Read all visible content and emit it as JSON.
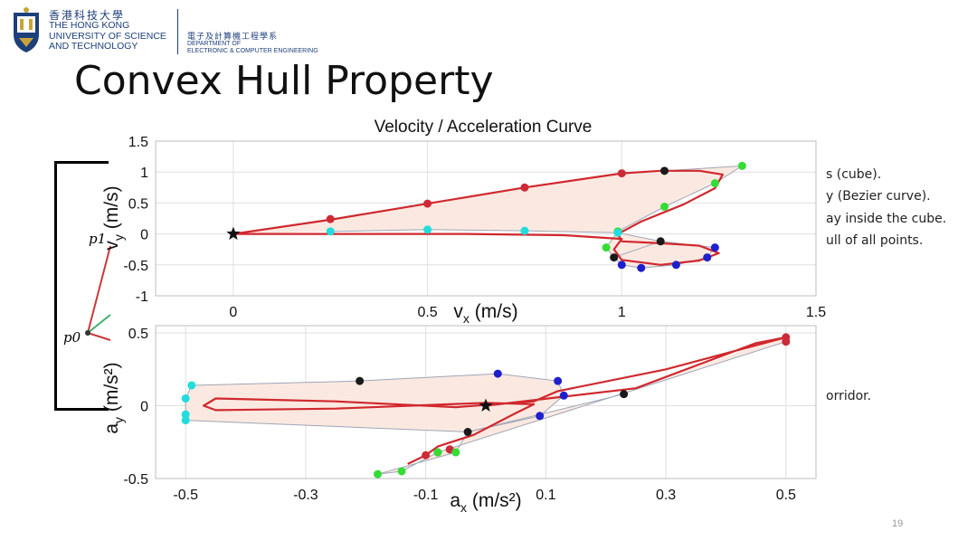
{
  "header": {
    "uni_name_cn": "香港科技大學",
    "uni_name_en": [
      "THE HONG KONG",
      "UNIVERSITY OF SCIENCE",
      "AND TECHNOLOGY"
    ],
    "dept_name_cn": "電子及計算機工程學系",
    "dept_name_en": [
      "DEPARTMENT OF",
      "ELECTRONIC & COMPUTER ENGINEERING"
    ]
  },
  "slide": {
    "title": "Convex Hull Property",
    "bullets": [
      "s (cube).",
      "y (Bezier curve).",
      "ay inside the cube.",
      "ull of all points.",
      "orridor."
    ],
    "page_number": "19",
    "control_point_labels": [
      "p1",
      "p0"
    ]
  },
  "colors": {
    "curve": "#d0282e",
    "hull_fill": "#fbe9e1",
    "hull_edge": "#9ea6b5",
    "pt_red": "#cc2a36",
    "pt_black": "#1a1a1a",
    "pt_green": "#33dd33",
    "pt_cyan": "#22dddd",
    "pt_blue": "#1f1fcc",
    "brand": "#1d3f7a"
  },
  "chart_data": [
    {
      "type": "line",
      "title": "Velocity / Acceleration Curve",
      "xlabel": "v_x (m/s)",
      "ylabel": "v_y (m/s)",
      "xlim": [
        -0.2,
        1.5
      ],
      "ylim": [
        -1,
        1.5
      ],
      "xticks": [
        "0",
        "0.5",
        "1",
        "1.5"
      ],
      "xtick_values": [
        0,
        0.5,
        1,
        1.5
      ],
      "yticks": [
        "1.5",
        "1",
        "0.5",
        "0",
        "-0.5",
        "-1"
      ],
      "ytick_values": [
        1.5,
        1,
        0.5,
        0,
        -0.5,
        -1
      ],
      "grid": true,
      "start_marker": [
        0,
        0
      ],
      "curve": [
        [
          0,
          0
        ],
        [
          0.25,
          0.23
        ],
        [
          0.5,
          0.49
        ],
        [
          0.75,
          0.75
        ],
        [
          1,
          0.98
        ],
        [
          1.1,
          1.02
        ],
        [
          1.2,
          1.02
        ],
        [
          1.26,
          0.96
        ],
        [
          1.24,
          0.74
        ],
        [
          1.16,
          0.48
        ],
        [
          1.05,
          0.2
        ],
        [
          0.99,
          0
        ],
        [
          1.0,
          -0.12
        ],
        [
          1.1,
          -0.15
        ],
        [
          1.2,
          -0.19
        ],
        [
          1.25,
          -0.31
        ],
        [
          1.2,
          -0.43
        ],
        [
          1.1,
          -0.5
        ],
        [
          1.0,
          -0.42
        ],
        [
          0.98,
          -0.25
        ],
        [
          1.0,
          -0.08
        ],
        [
          0.85,
          -0.02
        ],
        [
          0.6,
          0.0
        ],
        [
          0.3,
          0.0
        ],
        [
          0,
          0
        ]
      ],
      "points": {
        "red": [
          [
            0.25,
            0.24
          ],
          [
            0.5,
            0.49
          ],
          [
            0.75,
            0.75
          ],
          [
            1.0,
            0.98
          ]
        ],
        "black": [
          [
            1.11,
            1.02
          ],
          [
            1.1,
            -0.12
          ],
          [
            0.98,
            -0.38
          ]
        ],
        "green": [
          [
            1.31,
            1.1
          ],
          [
            1.24,
            0.82
          ],
          [
            1.11,
            0.44
          ],
          [
            0.99,
            0.04
          ],
          [
            0.96,
            -0.22
          ]
        ],
        "cyan": [
          [
            0.25,
            0.04
          ],
          [
            0.5,
            0.07
          ],
          [
            0.75,
            0.05
          ],
          [
            0.99,
            0.02
          ]
        ],
        "blue": [
          [
            1.0,
            -0.5
          ],
          [
            1.05,
            -0.55
          ],
          [
            1.14,
            -0.5
          ],
          [
            1.22,
            -0.38
          ],
          [
            1.24,
            -0.22
          ]
        ]
      },
      "hulls": [
        [
          [
            0,
            0
          ],
          [
            0.25,
            0.24
          ],
          [
            0.5,
            0.49
          ],
          [
            0.75,
            0.75
          ],
          [
            1.0,
            0.98
          ],
          [
            1.11,
            1.02
          ],
          [
            1.31,
            1.1
          ],
          [
            1.24,
            0.82
          ],
          [
            1.11,
            0.44
          ],
          [
            0.99,
            0.04
          ],
          [
            0.96,
            -0.22
          ],
          [
            0.98,
            -0.38
          ],
          [
            1.1,
            -0.12
          ],
          [
            0.99,
            0.02
          ],
          [
            0.75,
            0.05
          ],
          [
            0.5,
            0.07
          ],
          [
            0.25,
            0.04
          ]
        ],
        [
          [
            1.1,
            -0.12
          ],
          [
            1.24,
            -0.22
          ],
          [
            1.22,
            -0.38
          ],
          [
            1.14,
            -0.5
          ],
          [
            1.05,
            -0.55
          ],
          [
            1.0,
            -0.5
          ],
          [
            0.98,
            -0.38
          ]
        ]
      ]
    },
    {
      "type": "line",
      "title": "",
      "xlabel": "a_x (m/s²)",
      "ylabel": "a_y (m/s²)",
      "xlim": [
        -0.55,
        0.55
      ],
      "ylim": [
        -0.5,
        0.55
      ],
      "xticks": [
        "-0.5",
        "-0.3",
        "-0.1",
        "0.1",
        "0.3",
        "0.5"
      ],
      "xtick_values": [
        -0.5,
        -0.3,
        -0.1,
        0.1,
        0.3,
        0.5
      ],
      "yticks": [
        "0.5",
        "0",
        "-0.5"
      ],
      "ytick_values": [
        0.5,
        0,
        -0.5
      ],
      "grid": true,
      "start_marker": [
        0,
        0
      ],
      "curve": [
        [
          0,
          0
        ],
        [
          0.25,
          0.12
        ],
        [
          0.45,
          0.43
        ],
        [
          0.5,
          0.47
        ],
        [
          0.3,
          0.25
        ],
        [
          0.12,
          0.1
        ],
        [
          0.08,
          0.03
        ],
        [
          -0.05,
          -0.01
        ],
        [
          -0.25,
          0.03
        ],
        [
          -0.45,
          0.05
        ],
        [
          -0.47,
          0.0
        ],
        [
          -0.45,
          -0.03
        ],
        [
          -0.25,
          -0.02
        ],
        [
          0.0,
          0.02
        ],
        [
          0.08,
          0.01
        ],
        [
          0.05,
          -0.05
        ],
        [
          -0.02,
          -0.2
        ],
        [
          -0.08,
          -0.28
        ],
        [
          -0.1,
          -0.34
        ],
        [
          -0.13,
          -0.4
        ]
      ],
      "points": {
        "red": [
          [
            0.5,
            0.47
          ],
          [
            0.5,
            0.44
          ],
          [
            -0.1,
            -0.34
          ],
          [
            -0.08,
            -0.32
          ],
          [
            -0.06,
            -0.3
          ]
        ],
        "black": [
          [
            -0.21,
            0.17
          ],
          [
            0.23,
            0.08
          ],
          [
            -0.03,
            -0.18
          ]
        ],
        "green": [
          [
            -0.18,
            -0.47
          ],
          [
            -0.14,
            -0.45
          ],
          [
            -0.08,
            -0.32
          ],
          [
            -0.05,
            -0.32
          ]
        ],
        "cyan": [
          [
            -0.49,
            0.14
          ],
          [
            -0.5,
            0.05
          ],
          [
            -0.5,
            -0.06
          ],
          [
            -0.5,
            -0.1
          ]
        ],
        "blue": [
          [
            0.02,
            0.22
          ],
          [
            0.12,
            0.17
          ],
          [
            0.13,
            0.07
          ],
          [
            0.09,
            -0.07
          ]
        ]
      },
      "hulls": [
        [
          [
            0.5,
            0.49
          ],
          [
            0.5,
            0.44
          ],
          [
            -0.08,
            -0.32
          ],
          [
            -0.14,
            -0.45
          ],
          [
            -0.18,
            -0.47
          ],
          [
            -0.05,
            -0.32
          ],
          [
            -0.03,
            -0.18
          ],
          [
            0.09,
            -0.07
          ],
          [
            0.13,
            0.07
          ],
          [
            0.12,
            0.17
          ],
          [
            0.02,
            0.22
          ],
          [
            -0.21,
            0.17
          ],
          [
            -0.49,
            0.14
          ],
          [
            -0.5,
            0.05
          ],
          [
            -0.5,
            -0.1
          ],
          [
            -0.03,
            -0.18
          ],
          [
            0.23,
            0.08
          ]
        ]
      ]
    }
  ]
}
